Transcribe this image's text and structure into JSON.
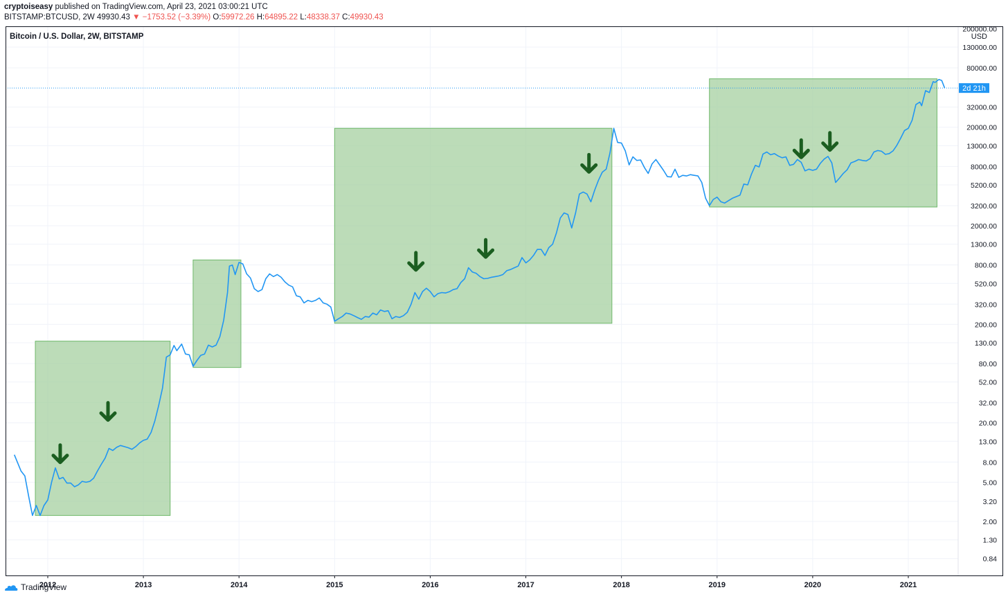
{
  "header": {
    "publisher": "cryptoiseasy",
    "published_text": "published on TradingView.com, April 23, 2021 03:00:21 UTC",
    "symbol": "BITSTAMP:BTCUSD, 2W",
    "last": "49930.43",
    "change_arrow": "▼",
    "change": "−1753.52 (−3.39%)",
    "open_label": "O:",
    "open": "59972.26",
    "high_label": "H:",
    "high": "64895.22",
    "low_label": "L:",
    "low": "48338.37",
    "close_label": "C:",
    "close": "49930.43"
  },
  "footer": {
    "brand": "TradingView",
    "icon": "tradingview-cloud-icon"
  },
  "colors": {
    "line": "#2196f3",
    "box_fill": "#a5d0a0",
    "box_stroke": "#6fb86a",
    "arrow": "#1b5e20",
    "down": "#ef5350",
    "price_tag": "#2196f3"
  },
  "chart_data": {
    "type": "line",
    "title": "Bitcoin / U.S. Dollar, 2W, BITSTAMP",
    "y_unit": "USD",
    "y_scale": "log",
    "x_ticks": [
      "2012",
      "2013",
      "2014",
      "2015",
      "2016",
      "2017",
      "2018",
      "2019",
      "2020",
      "2021"
    ],
    "y_ticks": [
      {
        "label": "200000.00",
        "value": 200000
      },
      {
        "label": "130000.00",
        "value": 130000
      },
      {
        "label": "80000.00",
        "value": 80000
      },
      {
        "label": "32000.00",
        "value": 32000
      },
      {
        "label": "20000.00",
        "value": 20000
      },
      {
        "label": "13000.00",
        "value": 13000
      },
      {
        "label": "8000.00",
        "value": 8000
      },
      {
        "label": "5200.00",
        "value": 5200
      },
      {
        "label": "3200.00",
        "value": 3200
      },
      {
        "label": "2000.00",
        "value": 2000
      },
      {
        "label": "1300.00",
        "value": 1300
      },
      {
        "label": "800.00",
        "value": 800
      },
      {
        "label": "520.00",
        "value": 520
      },
      {
        "label": "320.00",
        "value": 320
      },
      {
        "label": "200.00",
        "value": 200
      },
      {
        "label": "130.00",
        "value": 130
      },
      {
        "label": "80.00",
        "value": 80
      },
      {
        "label": "52.00",
        "value": 52
      },
      {
        "label": "32.00",
        "value": 32
      },
      {
        "label": "20.00",
        "value": 20
      },
      {
        "label": "13.00",
        "value": 13
      },
      {
        "label": "8.00",
        "value": 8
      },
      {
        "label": "5.00",
        "value": 5
      },
      {
        "label": "3.20",
        "value": 3.2
      },
      {
        "label": "2.00",
        "value": 2
      },
      {
        "label": "1.30",
        "value": 1.3
      },
      {
        "label": "0.84",
        "value": 0.84
      }
    ],
    "current_price": 49930.43,
    "countdown": "2d 21h",
    "series": [
      {
        "points": [
          [
            2011.65,
            9.5
          ],
          [
            2011.72,
            6.5
          ],
          [
            2011.76,
            5.8
          ],
          [
            2011.8,
            3.6
          ],
          [
            2011.84,
            2.3
          ],
          [
            2011.88,
            2.9
          ],
          [
            2011.92,
            2.3
          ],
          [
            2011.96,
            2.9
          ],
          [
            2012.0,
            3.3
          ],
          [
            2012.04,
            5.0
          ],
          [
            2012.08,
            7.0
          ],
          [
            2012.12,
            5.4
          ],
          [
            2012.16,
            5.6
          ],
          [
            2012.2,
            4.9
          ],
          [
            2012.24,
            4.9
          ],
          [
            2012.28,
            4.5
          ],
          [
            2012.32,
            4.7
          ],
          [
            2012.36,
            5.1
          ],
          [
            2012.4,
            5.0
          ],
          [
            2012.44,
            5.1
          ],
          [
            2012.48,
            5.5
          ],
          [
            2012.52,
            6.5
          ],
          [
            2012.56,
            7.6
          ],
          [
            2012.6,
            8.8
          ],
          [
            2012.64,
            11.0
          ],
          [
            2012.68,
            10.5
          ],
          [
            2012.72,
            11.3
          ],
          [
            2012.76,
            11.8
          ],
          [
            2012.8,
            11.5
          ],
          [
            2012.84,
            11.2
          ],
          [
            2012.88,
            10.8
          ],
          [
            2012.92,
            11.5
          ],
          [
            2012.96,
            12.5
          ],
          [
            2013.0,
            13.3
          ],
          [
            2013.04,
            13.7
          ],
          [
            2013.08,
            16.0
          ],
          [
            2013.12,
            21.0
          ],
          [
            2013.16,
            30.0
          ],
          [
            2013.2,
            45.0
          ],
          [
            2013.24,
            93.0
          ],
          [
            2013.28,
            98.0
          ],
          [
            2013.32,
            122.0
          ],
          [
            2013.35,
            108.0
          ],
          [
            2013.4,
            126.0
          ],
          [
            2013.44,
            100.0
          ],
          [
            2013.48,
            98.0
          ],
          [
            2013.52,
            75.0
          ],
          [
            2013.56,
            86.0
          ],
          [
            2013.6,
            97.0
          ],
          [
            2013.64,
            100.0
          ],
          [
            2013.68,
            123.0
          ],
          [
            2013.72,
            118.0
          ],
          [
            2013.76,
            123.0
          ],
          [
            2013.8,
            150.0
          ],
          [
            2013.84,
            220.0
          ],
          [
            2013.88,
            420.0
          ],
          [
            2013.9,
            780.0
          ],
          [
            2013.93,
            800.0
          ],
          [
            2013.96,
            640.0
          ],
          [
            2014.0,
            850.0
          ],
          [
            2014.04,
            820.0
          ],
          [
            2014.08,
            650.0
          ],
          [
            2014.12,
            590.0
          ],
          [
            2014.16,
            460.0
          ],
          [
            2014.2,
            430.0
          ],
          [
            2014.24,
            450.0
          ],
          [
            2014.28,
            580.0
          ],
          [
            2014.32,
            650.0
          ],
          [
            2014.36,
            610.0
          ],
          [
            2014.4,
            640.0
          ],
          [
            2014.44,
            600.0
          ],
          [
            2014.48,
            540.0
          ],
          [
            2014.52,
            500.0
          ],
          [
            2014.56,
            480.0
          ],
          [
            2014.6,
            390.0
          ],
          [
            2014.64,
            380.0
          ],
          [
            2014.68,
            330.0
          ],
          [
            2014.72,
            350.0
          ],
          [
            2014.76,
            340.0
          ],
          [
            2014.8,
            350.0
          ],
          [
            2014.84,
            370.0
          ],
          [
            2014.88,
            330.0
          ],
          [
            2014.92,
            320.0
          ],
          [
            2014.96,
            300.0
          ],
          [
            2015.0,
            215.0
          ],
          [
            2015.04,
            228.0
          ],
          [
            2015.08,
            240.0
          ],
          [
            2015.12,
            260.0
          ],
          [
            2015.16,
            255.0
          ],
          [
            2015.2,
            245.0
          ],
          [
            2015.24,
            234.0
          ],
          [
            2015.28,
            225.0
          ],
          [
            2015.32,
            240.0
          ],
          [
            2015.36,
            237.0
          ],
          [
            2015.4,
            260.0
          ],
          [
            2015.44,
            250.0
          ],
          [
            2015.48,
            280.0
          ],
          [
            2015.52,
            270.0
          ],
          [
            2015.56,
            275.0
          ],
          [
            2015.6,
            228.0
          ],
          [
            2015.64,
            240.0
          ],
          [
            2015.68,
            235.0
          ],
          [
            2015.72,
            245.0
          ],
          [
            2015.76,
            265.0
          ],
          [
            2015.8,
            320.0
          ],
          [
            2015.84,
            420.0
          ],
          [
            2015.88,
            360.0
          ],
          [
            2015.92,
            430.0
          ],
          [
            2015.96,
            465.0
          ],
          [
            2016.0,
            430.0
          ],
          [
            2016.04,
            380.0
          ],
          [
            2016.08,
            410.0
          ],
          [
            2016.12,
            420.0
          ],
          [
            2016.16,
            416.0
          ],
          [
            2016.2,
            428.0
          ],
          [
            2016.24,
            450.0
          ],
          [
            2016.28,
            460.0
          ],
          [
            2016.32,
            530.0
          ],
          [
            2016.36,
            580.0
          ],
          [
            2016.4,
            750.0
          ],
          [
            2016.44,
            680.0
          ],
          [
            2016.48,
            660.0
          ],
          [
            2016.52,
            610.0
          ],
          [
            2016.56,
            580.0
          ],
          [
            2016.6,
            585.0
          ],
          [
            2016.64,
            600.0
          ],
          [
            2016.68,
            610.0
          ],
          [
            2016.72,
            620.0
          ],
          [
            2016.76,
            640.0
          ],
          [
            2016.8,
            700.0
          ],
          [
            2016.84,
            720.0
          ],
          [
            2016.88,
            750.0
          ],
          [
            2016.92,
            780.0
          ],
          [
            2016.96,
            950.0
          ],
          [
            2017.0,
            840.0
          ],
          [
            2017.04,
            900.0
          ],
          [
            2017.08,
            1000.0
          ],
          [
            2017.12,
            1150.0
          ],
          [
            2017.16,
            1150.0
          ],
          [
            2017.2,
            1000.0
          ],
          [
            2017.24,
            1200.0
          ],
          [
            2017.28,
            1300.0
          ],
          [
            2017.32,
            1700.0
          ],
          [
            2017.36,
            2400.0
          ],
          [
            2017.4,
            2700.0
          ],
          [
            2017.44,
            2600.0
          ],
          [
            2017.48,
            1900.0
          ],
          [
            2017.52,
            2700.0
          ],
          [
            2017.56,
            4200.0
          ],
          [
            2017.6,
            4400.0
          ],
          [
            2017.64,
            4200.0
          ],
          [
            2017.68,
            3500.0
          ],
          [
            2017.72,
            4600.0
          ],
          [
            2017.76,
            5800.0
          ],
          [
            2017.8,
            7000.0
          ],
          [
            2017.84,
            7500.0
          ],
          [
            2017.88,
            11000.0
          ],
          [
            2017.92,
            19500.0
          ],
          [
            2017.96,
            14000.0
          ],
          [
            2018.0,
            13800.0
          ],
          [
            2018.04,
            11500.0
          ],
          [
            2018.08,
            8300.0
          ],
          [
            2018.12,
            10000.0
          ],
          [
            2018.16,
            9200.0
          ],
          [
            2018.2,
            9300.0
          ],
          [
            2018.24,
            7800.0
          ],
          [
            2018.28,
            6800.0
          ],
          [
            2018.32,
            8500.0
          ],
          [
            2018.36,
            9400.0
          ],
          [
            2018.4,
            8300.0
          ],
          [
            2018.44,
            7300.0
          ],
          [
            2018.48,
            6300.0
          ],
          [
            2018.52,
            6250.0
          ],
          [
            2018.56,
            7500.0
          ],
          [
            2018.6,
            6200.0
          ],
          [
            2018.64,
            6500.0
          ],
          [
            2018.68,
            6400.0
          ],
          [
            2018.72,
            6600.0
          ],
          [
            2018.76,
            6500.0
          ],
          [
            2018.8,
            6400.0
          ],
          [
            2018.84,
            5500.0
          ],
          [
            2018.88,
            3800.0
          ],
          [
            2018.92,
            3200.0
          ],
          [
            2018.96,
            3700.0
          ],
          [
            2019.0,
            3900.0
          ],
          [
            2019.04,
            3500.0
          ],
          [
            2019.08,
            3400.0
          ],
          [
            2019.12,
            3600.0
          ],
          [
            2019.16,
            3800.0
          ],
          [
            2019.2,
            3950.0
          ],
          [
            2019.24,
            4100.0
          ],
          [
            2019.28,
            5300.0
          ],
          [
            2019.32,
            5200.0
          ],
          [
            2019.36,
            6700.0
          ],
          [
            2019.4,
            8200.0
          ],
          [
            2019.44,
            7900.0
          ],
          [
            2019.48,
            10700.0
          ],
          [
            2019.52,
            11200.0
          ],
          [
            2019.56,
            10500.0
          ],
          [
            2019.6,
            10800.0
          ],
          [
            2019.64,
            10200.0
          ],
          [
            2019.68,
            9800.0
          ],
          [
            2019.72,
            10000.0
          ],
          [
            2019.76,
            8200.0
          ],
          [
            2019.8,
            8400.0
          ],
          [
            2019.84,
            9400.0
          ],
          [
            2019.88,
            8800.0
          ],
          [
            2019.92,
            7200.0
          ],
          [
            2019.96,
            7500.0
          ],
          [
            2020.0,
            7300.0
          ],
          [
            2020.04,
            7500.0
          ],
          [
            2020.08,
            8600.0
          ],
          [
            2020.12,
            9500.0
          ],
          [
            2020.16,
            10100.0
          ],
          [
            2020.2,
            8700.0
          ],
          [
            2020.24,
            5500.0
          ],
          [
            2020.28,
            6100.0
          ],
          [
            2020.32,
            6800.0
          ],
          [
            2020.36,
            7400.0
          ],
          [
            2020.4,
            8700.0
          ],
          [
            2020.44,
            9000.0
          ],
          [
            2020.48,
            9400.0
          ],
          [
            2020.52,
            9200.0
          ],
          [
            2020.56,
            9100.0
          ],
          [
            2020.6,
            9600.0
          ],
          [
            2020.64,
            11200.0
          ],
          [
            2020.68,
            11600.0
          ],
          [
            2020.72,
            11400.0
          ],
          [
            2020.76,
            10600.0
          ],
          [
            2020.8,
            10800.0
          ],
          [
            2020.84,
            11500.0
          ],
          [
            2020.88,
            13100.0
          ],
          [
            2020.92,
            15500.0
          ],
          [
            2020.96,
            18500.0
          ],
          [
            2021.0,
            19500.0
          ],
          [
            2021.04,
            23500.0
          ],
          [
            2021.08,
            34000.0
          ],
          [
            2021.12,
            36000.0
          ],
          [
            2021.14,
            33000.0
          ],
          [
            2021.18,
            47000.0
          ],
          [
            2021.22,
            45000.0
          ],
          [
            2021.26,
            58000.0
          ],
          [
            2021.28,
            57000.0
          ],
          [
            2021.32,
            61000.0
          ],
          [
            2021.35,
            59500.0
          ],
          [
            2021.38,
            49930.43
          ]
        ]
      }
    ],
    "boxes": [
      {
        "x0": 2011.87,
        "x1": 2013.28,
        "y0": 2.3,
        "y1": 135
      },
      {
        "x0": 2013.52,
        "x1": 2014.02,
        "y0": 73,
        "y1": 900
      },
      {
        "x0": 2015.0,
        "x1": 2017.9,
        "y0": 205,
        "y1": 19500
      },
      {
        "x0": 2018.92,
        "x1": 2021.3,
        "y0": 3100,
        "y1": 62000
      }
    ],
    "arrows": [
      {
        "x": 2012.13,
        "y": 9.5
      },
      {
        "x": 2012.63,
        "y": 25.5
      },
      {
        "x": 2015.85,
        "y": 850
      },
      {
        "x": 2016.58,
        "y": 1150
      },
      {
        "x": 2017.66,
        "y": 8400
      },
      {
        "x": 2019.88,
        "y": 11800
      },
      {
        "x": 2020.18,
        "y": 14000
      }
    ]
  }
}
